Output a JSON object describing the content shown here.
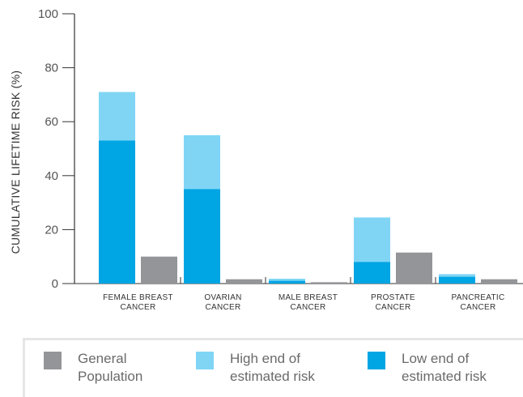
{
  "chart_data": {
    "type": "bar",
    "stacked_partial": true,
    "ylabel": "CUMULATIVE LIFETIME RISK (%)",
    "ylim": [
      0,
      100
    ],
    "yticks": [
      0,
      20,
      40,
      60,
      80,
      100
    ],
    "grid": false,
    "categories": [
      [
        "FEMALE BREAST",
        "CANCER"
      ],
      [
        "OVARIAN",
        "CANCER"
      ],
      [
        "MALE BREAST",
        "CANCER"
      ],
      [
        "PROSTATE",
        "CANCER"
      ],
      [
        "PANCREATIC",
        "CANCER"
      ]
    ],
    "series": [
      {
        "name": "Low end of estimated risk",
        "color": "#00a5e3",
        "values": [
          53,
          35,
          1,
          8,
          2.5
        ]
      },
      {
        "name": "High end of estimated risk",
        "color": "#80d5f5",
        "values": [
          71,
          55,
          1.8,
          24.5,
          3.5
        ]
      },
      {
        "name": "General Population",
        "color": "#939598",
        "values": [
          10,
          1.6,
          0.5,
          11.5,
          1.6
        ]
      }
    ],
    "legend_position": "bottom"
  },
  "legend": {
    "items": [
      {
        "label": "General\nPopulation",
        "color": "#939598"
      },
      {
        "label": "High end of\nestimated risk",
        "color": "#80d5f5"
      },
      {
        "label": "Low end of\nestimated risk",
        "color": "#00a5e3"
      }
    ]
  }
}
